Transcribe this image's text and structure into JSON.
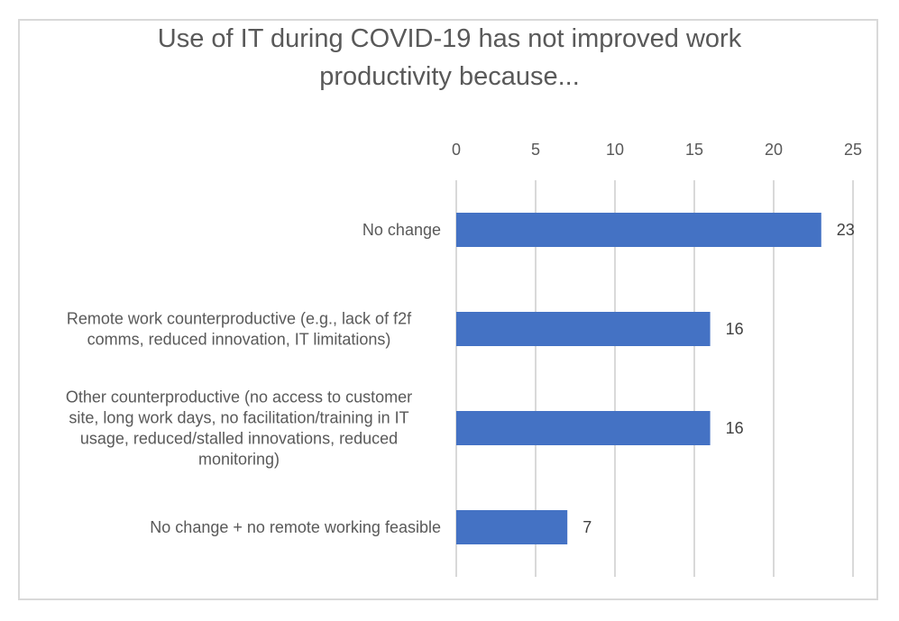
{
  "chart_data": {
    "type": "bar",
    "orientation": "horizontal",
    "title": "Use of IT during COVID-19 has not improved work productivity because...",
    "title_lines": [
      "Use of IT during COVID-19 has not improved work",
      "productivity because..."
    ],
    "categories": [
      "No change",
      "Remote work counterproductive (e.g., lack of f2f comms, reduced innovation, IT limitations)",
      "Other counterproductive (no access to customer site, long work days, no facilitation/training in IT usage, reduced/stalled innovations, reduced monitoring)",
      "No change + no remote working feasible"
    ],
    "category_lines": [
      [
        "No change"
      ],
      [
        "Remote work counterproductive (e.g., lack of f2f",
        "comms, reduced innovation, IT limitations)"
      ],
      [
        "Other counterproductive (no access to customer",
        "site, long work days, no facilitation/training in IT",
        "usage, reduced/stalled innovations, reduced",
        "monitoring)"
      ],
      [
        "No change + no remote working feasible"
      ]
    ],
    "values": [
      23,
      16,
      16,
      7
    ],
    "data_labels": [
      "23",
      "16",
      "16",
      "7"
    ],
    "xlim": [
      0,
      25
    ],
    "x_ticks": [
      0,
      5,
      10,
      15,
      20,
      25
    ],
    "x_tick_labels": [
      "0",
      "5",
      "10",
      "15",
      "20",
      "25"
    ],
    "x_axis_position": "top",
    "xlabel": "",
    "ylabel": "",
    "grid": true,
    "legend": "none",
    "bar_color": "#4472c4",
    "grid_color": "#d9d9d9"
  }
}
